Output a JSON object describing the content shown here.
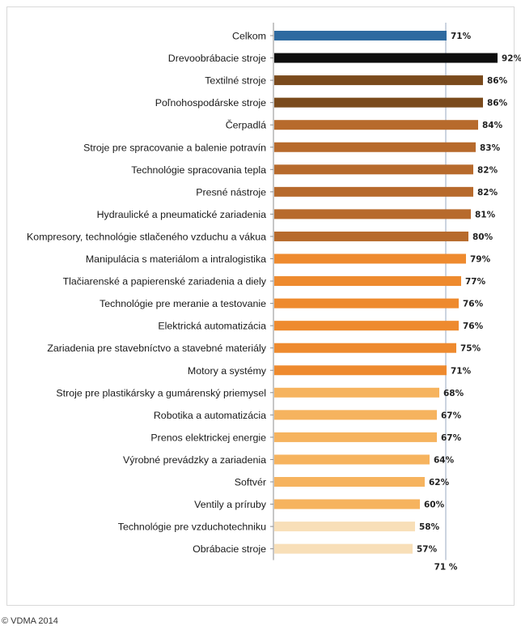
{
  "chart_data": {
    "type": "bar",
    "orientation": "horizontal",
    "categories": [
      "Celkom",
      "Drevoobrábacie stroje",
      "Textilné stroje",
      "Poľnohospodárske stroje",
      "Čerpadlá",
      "Stroje pre spracovanie a balenie potravín",
      "Technológie spracovania tepla",
      "Presné nástroje",
      "Hydraulické a pneumatické zariadenia",
      "Kompresory, technológie stlačeného vzduchu a vákua",
      "Manipulácia s materiálom a intralogistika",
      "Tlačiarenské a papierenské zariadenia a diely",
      "Technológie pre meranie a testovanie",
      "Elektrická automatizácia",
      "Zariadenia pre stavebníctvo a stavebné materiály",
      "Motory a systémy",
      "Stroje pre plastikársky a gumárenský priemysel",
      "Robotika a automatizácia",
      "Prenos elektrickej energie",
      "Výrobné prevádzky a zariadenia",
      "Softvér",
      "Ventily a príruby",
      "Technológie pre vzduchotechniku",
      "Obrábacie stroje"
    ],
    "values": [
      71,
      92,
      86,
      86,
      84,
      83,
      82,
      82,
      81,
      80,
      79,
      77,
      76,
      76,
      75,
      71,
      68,
      67,
      67,
      64,
      62,
      60,
      58,
      57
    ],
    "value_labels": [
      "71%",
      "92%",
      "86%",
      "86%",
      "84%",
      "83%",
      "82%",
      "82%",
      "81%",
      "80%",
      "79%",
      "77%",
      "76%",
      "76%",
      "75%",
      "71%",
      "68%",
      "67%",
      "67%",
      "64%",
      "62%",
      "60%",
      "58%",
      "57%"
    ],
    "bar_colors": [
      "#2e6aa0",
      "#0d0d0d",
      "#7a4a1c",
      "#7a4a1c",
      "#b76a2c",
      "#b76a2c",
      "#b76a2c",
      "#b76a2c",
      "#b76a2c",
      "#b76a2c",
      "#ee8a2e",
      "#ee8a2e",
      "#ee8a2e",
      "#ee8a2e",
      "#ee8a2e",
      "#ee8a2e",
      "#f6b35e",
      "#f6b35e",
      "#f6b35e",
      "#f6b35e",
      "#f6b35e",
      "#f6b35e",
      "#f8dfb8",
      "#f8dfb8"
    ],
    "reference_line": {
      "value": 71,
      "label": "71 %"
    },
    "xlim": [
      0,
      93
    ],
    "grid": false,
    "legend": false
  },
  "footer": {
    "copyright": "© VDMA 2014"
  }
}
